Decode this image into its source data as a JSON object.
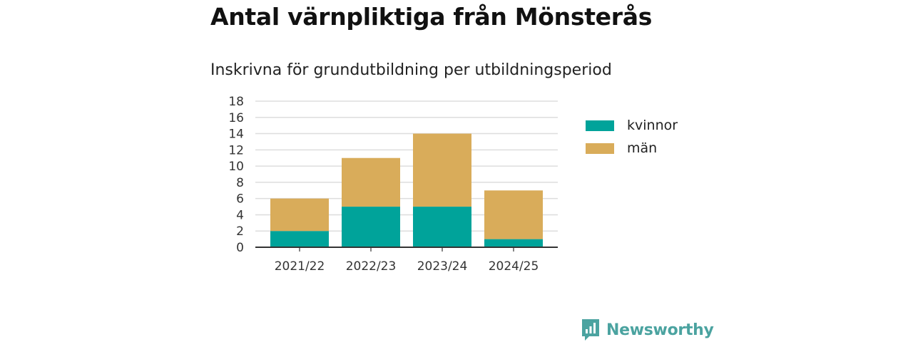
{
  "title": "Antal värnpliktiga från Mönsterås",
  "subtitle": "Inskrivna för grundutbildning per utbildningsperiod",
  "brand": {
    "name": "Newsworthy",
    "color": "#4ba3a0"
  },
  "chart_data": {
    "type": "bar",
    "stacked": true,
    "categories": [
      "2021/22",
      "2022/23",
      "2023/24",
      "2024/25"
    ],
    "series": [
      {
        "name": "kvinnor",
        "values": [
          2,
          5,
          5,
          1
        ],
        "color": "#00a39a"
      },
      {
        "name": "män",
        "values": [
          4,
          6,
          9,
          6
        ],
        "color": "#d9ac5a"
      }
    ],
    "ylim": [
      0,
      18
    ],
    "yticks": [
      0,
      2,
      4,
      6,
      8,
      10,
      12,
      14,
      16,
      18
    ],
    "grid": true,
    "legend": "right"
  }
}
